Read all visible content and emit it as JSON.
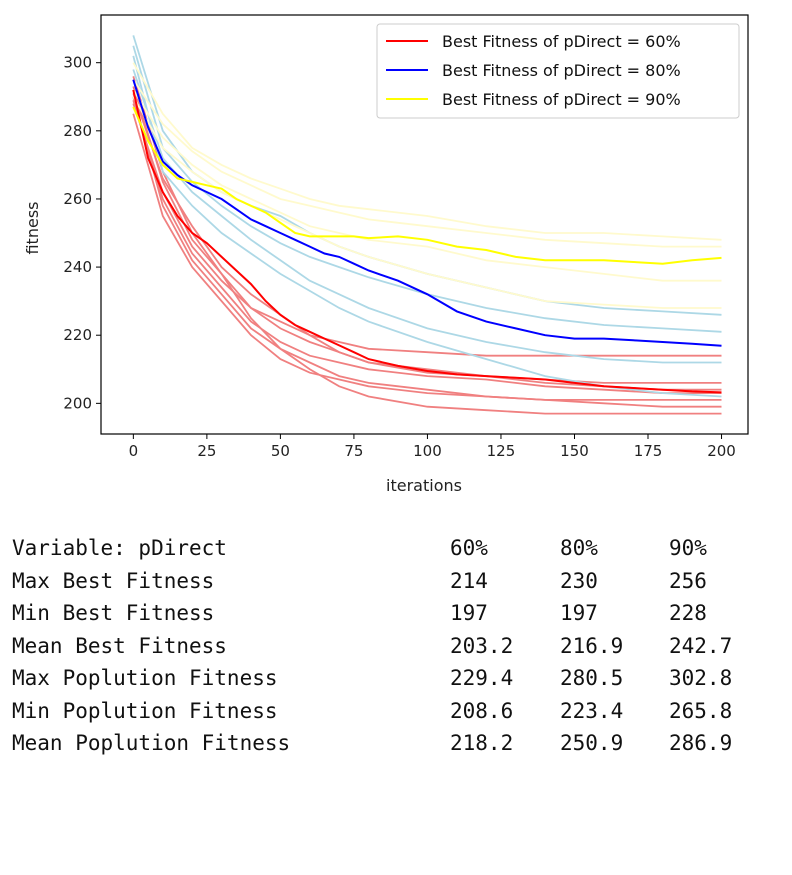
{
  "chart_data": {
    "type": "line",
    "xlabel": "iterations",
    "ylabel": "fitness",
    "xlim": [
      -11,
      209
    ],
    "ylim": [
      191,
      314
    ],
    "xticks": [
      0,
      25,
      50,
      75,
      100,
      125,
      150,
      175,
      200
    ],
    "yticks": [
      200,
      220,
      240,
      260,
      280,
      300
    ],
    "grid": false,
    "legend_position": "top-right",
    "series": [
      {
        "name": "Best Fitness of pDirect = 60%",
        "color": "#ff0000",
        "x": [
          0,
          5,
          10,
          15,
          20,
          25,
          30,
          35,
          40,
          45,
          50,
          55,
          60,
          65,
          70,
          75,
          80,
          90,
          100,
          110,
          120,
          130,
          140,
          150,
          160,
          170,
          180,
          190,
          200
        ],
        "y": [
          292,
          272,
          262,
          255,
          250,
          247,
          243,
          239,
          235,
          230,
          226,
          223,
          221,
          219,
          217,
          215,
          213,
          211,
          209.5,
          208.5,
          208,
          207.5,
          207,
          206,
          205,
          204.5,
          204,
          203.5,
          203.2
        ]
      },
      {
        "name": "Best Fitness of pDirect = 80%",
        "color": "#0000ff",
        "x": [
          0,
          5,
          10,
          15,
          20,
          25,
          30,
          35,
          40,
          45,
          50,
          55,
          60,
          65,
          70,
          75,
          80,
          90,
          100,
          110,
          120,
          130,
          140,
          150,
          160,
          170,
          180,
          190,
          200
        ],
        "y": [
          295,
          281,
          271,
          267,
          264,
          262,
          260,
          257,
          254,
          252,
          250,
          248,
          246,
          244,
          243,
          241,
          239,
          236,
          232,
          227,
          224,
          222,
          220,
          219,
          219,
          218.5,
          218,
          217.5,
          216.9
        ]
      },
      {
        "name": "Best Fitness of pDirect = 90%",
        "color": "#ffff00",
        "x": [
          0,
          5,
          10,
          15,
          20,
          25,
          30,
          35,
          40,
          45,
          50,
          55,
          60,
          65,
          70,
          75,
          80,
          90,
          100,
          110,
          120,
          130,
          140,
          150,
          160,
          170,
          180,
          190,
          200
        ],
        "y": [
          287,
          277,
          270,
          266,
          265,
          264,
          263,
          260,
          258,
          256,
          253,
          250,
          249,
          249,
          249,
          249,
          248.5,
          249,
          248,
          246,
          245,
          243,
          242,
          242,
          242,
          241.5,
          241,
          242,
          242.7
        ]
      }
    ],
    "background_runs": [
      {
        "color": "#f08080",
        "x": [
          0,
          10,
          20,
          30,
          40,
          50,
          60,
          70,
          80,
          100,
          120,
          140,
          160,
          180,
          200
        ],
        "y": [
          293,
          265,
          248,
          238,
          228,
          222,
          218,
          215,
          212,
          210,
          208,
          206,
          205,
          204,
          204
        ]
      },
      {
        "color": "#f08080",
        "x": [
          0,
          10,
          20,
          30,
          40,
          50,
          60,
          70,
          80,
          100,
          120,
          140,
          160,
          180,
          200
        ],
        "y": [
          290,
          258,
          242,
          232,
          222,
          216,
          212,
          208,
          206,
          204,
          202,
          201,
          200,
          199,
          199
        ]
      },
      {
        "color": "#f08080",
        "x": [
          0,
          10,
          20,
          30,
          40,
          50,
          60,
          70,
          80,
          100,
          120,
          140,
          160,
          180,
          200
        ],
        "y": [
          288,
          262,
          246,
          236,
          228,
          224,
          220,
          218,
          216,
          215,
          214,
          214,
          214,
          214,
          214
        ]
      },
      {
        "color": "#f08080",
        "x": [
          0,
          10,
          20,
          30,
          40,
          50,
          60,
          70,
          80,
          100,
          120,
          140,
          160,
          180,
          200
        ],
        "y": [
          296,
          268,
          250,
          238,
          225,
          216,
          210,
          205,
          202,
          199,
          198,
          197,
          197,
          197,
          197
        ]
      },
      {
        "color": "#f08080",
        "x": [
          0,
          10,
          20,
          30,
          40,
          50,
          60,
          70,
          80,
          100,
          120,
          140,
          160,
          180,
          200
        ],
        "y": [
          285,
          255,
          240,
          230,
          220,
          213,
          209,
          207,
          205,
          203,
          202,
          201,
          201,
          201,
          201
        ]
      },
      {
        "color": "#f08080",
        "x": [
          0,
          10,
          20,
          30,
          40,
          50,
          60,
          70,
          80,
          100,
          120,
          140,
          160,
          180,
          200
        ],
        "y": [
          291,
          266,
          252,
          240,
          232,
          226,
          220,
          215,
          212,
          209,
          208,
          207,
          206,
          206,
          206
        ]
      },
      {
        "color": "#f08080",
        "x": [
          0,
          10,
          20,
          30,
          40,
          50,
          60,
          70,
          80,
          100,
          120,
          140,
          160,
          180,
          200
        ],
        "y": [
          289,
          260,
          244,
          234,
          224,
          218,
          214,
          212,
          210,
          208,
          207,
          205,
          204,
          203,
          203
        ]
      },
      {
        "color": "#add8e6",
        "x": [
          0,
          10,
          20,
          30,
          40,
          50,
          60,
          70,
          80,
          100,
          120,
          140,
          160,
          180,
          200
        ],
        "y": [
          305,
          275,
          265,
          258,
          252,
          247,
          243,
          240,
          237,
          232,
          228,
          225,
          223,
          222,
          221
        ]
      },
      {
        "color": "#add8e6",
        "x": [
          0,
          10,
          20,
          30,
          40,
          50,
          60,
          70,
          80,
          100,
          120,
          140,
          160,
          180,
          200
        ],
        "y": [
          302,
          268,
          258,
          250,
          244,
          238,
          233,
          228,
          224,
          218,
          213,
          208,
          205,
          203,
          202
        ]
      },
      {
        "color": "#add8e6",
        "x": [
          0,
          10,
          20,
          30,
          40,
          50,
          60,
          70,
          80,
          100,
          120,
          140,
          160,
          180,
          200
        ],
        "y": [
          308,
          280,
          268,
          262,
          258,
          255,
          250,
          246,
          243,
          238,
          234,
          230,
          228,
          227,
          226
        ]
      },
      {
        "color": "#add8e6",
        "x": [
          0,
          10,
          20,
          30,
          40,
          50,
          60,
          70,
          80,
          100,
          120,
          140,
          160,
          180,
          200
        ],
        "y": [
          298,
          272,
          262,
          255,
          248,
          242,
          236,
          232,
          228,
          222,
          218,
          215,
          213,
          212,
          212
        ]
      },
      {
        "color": "#fffacd",
        "x": [
          0,
          10,
          20,
          30,
          40,
          50,
          60,
          70,
          80,
          100,
          120,
          140,
          160,
          180,
          200
        ],
        "y": [
          300,
          285,
          275,
          270,
          266,
          263,
          260,
          258,
          257,
          255,
          252,
          250,
          250,
          249,
          248
        ]
      },
      {
        "color": "#fffacd",
        "x": [
          0,
          10,
          20,
          30,
          40,
          50,
          60,
          70,
          80,
          100,
          120,
          140,
          160,
          180,
          200
        ],
        "y": [
          292,
          278,
          270,
          264,
          260,
          256,
          252,
          250,
          248,
          246,
          242,
          240,
          238,
          236,
          236
        ]
      },
      {
        "color": "#fffacd",
        "x": [
          0,
          10,
          20,
          30,
          40,
          50,
          60,
          70,
          80,
          100,
          120,
          140,
          160,
          180,
          200
        ],
        "y": [
          295,
          282,
          274,
          268,
          264,
          260,
          258,
          256,
          254,
          252,
          250,
          248,
          247,
          246,
          246
        ]
      },
      {
        "color": "#fffacd",
        "x": [
          0,
          10,
          20,
          30,
          40,
          50,
          60,
          70,
          80,
          100,
          120,
          140,
          160,
          180,
          200
        ],
        "y": [
          290,
          275,
          268,
          262,
          258,
          254,
          250,
          246,
          243,
          238,
          234,
          230,
          229,
          228,
          228
        ]
      }
    ]
  },
  "stats_table": {
    "header": [
      "Variable: pDirect",
      "60%",
      "80%",
      "90%"
    ],
    "rows": [
      [
        "Max Best Fitness",
        "214",
        "230",
        "256"
      ],
      [
        "Min Best Fitness",
        "197",
        "197",
        "228"
      ],
      [
        "Mean Best Fitness",
        "203.2",
        "216.9",
        "242.7"
      ],
      [
        "Max Poplution Fitness",
        "229.4",
        "280.5",
        "302.8"
      ],
      [
        "Min Poplution Fitness",
        "208.6",
        "223.4",
        "265.8"
      ],
      [
        "Mean Poplution Fitness",
        "218.2",
        "250.9",
        "286.9"
      ]
    ]
  }
}
